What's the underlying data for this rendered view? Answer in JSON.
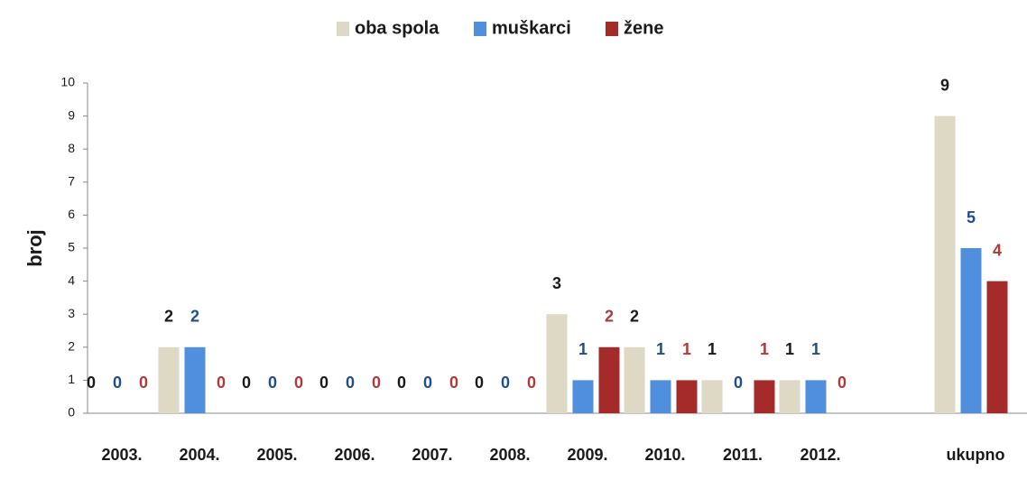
{
  "chart_data": {
    "type": "bar",
    "y_label": "broj",
    "categories": [
      "2003.",
      "2004.",
      "2005.",
      "2006.",
      "2007.",
      "2008.",
      "2009.",
      "2010.",
      "2011.",
      "2012.",
      null,
      "ukupno"
    ],
    "series": [
      {
        "name": "oba spola",
        "color": "#ddd9c4",
        "label_color": "#1a1a1a",
        "values": [
          0,
          2,
          0,
          0,
          0,
          0,
          3,
          2,
          1,
          1,
          null,
          9
        ]
      },
      {
        "name": "muškarci",
        "color": "#4f8fde",
        "label_color": "#1f4e8c",
        "values": [
          0,
          2,
          0,
          0,
          0,
          0,
          1,
          1,
          0,
          1,
          null,
          5
        ]
      },
      {
        "name": "žene",
        "color": "#a52a2a",
        "label_color": "#b03a3a",
        "values": [
          0,
          0,
          0,
          0,
          0,
          0,
          2,
          1,
          1,
          0,
          null,
          4
        ]
      }
    ],
    "ylim": [
      0,
      10
    ],
    "yticks": [
      0,
      1,
      2,
      3,
      4,
      5,
      6,
      7,
      8,
      9,
      10
    ],
    "grid": false,
    "legend": "top"
  }
}
